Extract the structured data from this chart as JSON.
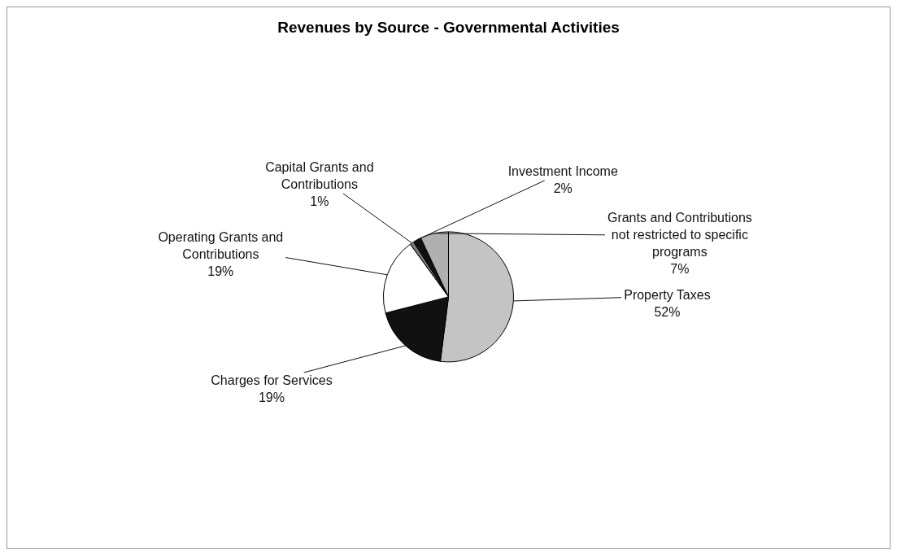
{
  "chart_data": {
    "type": "pie",
    "title": "Revenues by Source - Governmental Activities",
    "categories": [
      "Property Taxes",
      "Charges for Services",
      "Operating Grants and Contributions",
      "Capital Grants and Contributions",
      "Investment Income",
      "Grants and Contributions not restricted to specific programs"
    ],
    "values": [
      52,
      19,
      19,
      1,
      2,
      7
    ],
    "value_labels": [
      "52%",
      "19%",
      "19%",
      "1%",
      "2%",
      "7%"
    ],
    "colors": [
      "#c4c4c4",
      "#111111",
      "#ffffff",
      "#777777",
      "#111111",
      "#b0b0b0"
    ]
  }
}
